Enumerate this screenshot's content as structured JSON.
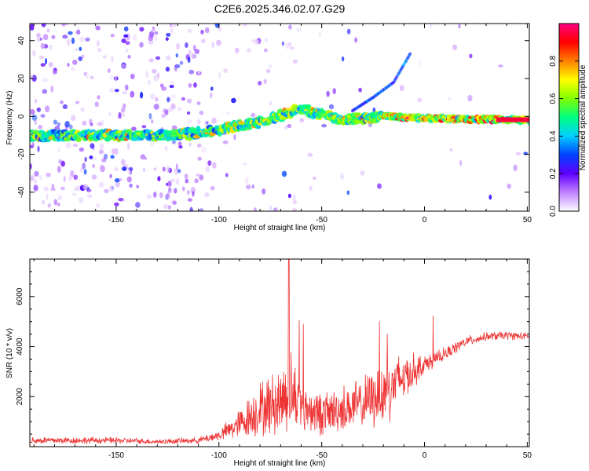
{
  "title": "C2E6.2025.346.02.07.G29",
  "chart_data": [
    {
      "type": "heatmap",
      "title": "C2E6.2025.346.02.07.G29",
      "xlabel": "Height of straight line (km)",
      "ylabel": "Frequency (Hz)",
      "xlim": [
        -192,
        51
      ],
      "ylim": [
        -50,
        49
      ],
      "xticks": [
        -150,
        -100,
        -50,
        0,
        50
      ],
      "yticks": [
        -40,
        -20,
        0,
        20,
        40
      ],
      "colorbar": {
        "label": "Normalized spectral amplitude",
        "range": [
          0,
          1
        ],
        "ticks": [
          0.0,
          0.2,
          0.4,
          0.6,
          0.8
        ],
        "colors": [
          "#ffffff",
          "#c080ff",
          "#6000ff",
          "#0040ff",
          "#00d0ff",
          "#00ff80",
          "#80ff00",
          "#ffff00",
          "#ff8000",
          "#ff0000",
          "#ff0080"
        ]
      },
      "ridge": [
        {
          "x": -192,
          "y": -10
        },
        {
          "x": -150,
          "y": -10
        },
        {
          "x": -120,
          "y": -10
        },
        {
          "x": -100,
          "y": -7
        },
        {
          "x": -80,
          "y": -3
        },
        {
          "x": -60,
          "y": 4
        },
        {
          "x": -50,
          "y": 1
        },
        {
          "x": -40,
          "y": -2
        },
        {
          "x": -30,
          "y": -1
        },
        {
          "x": -20,
          "y": 0
        },
        {
          "x": 0,
          "y": -1
        },
        {
          "x": 30,
          "y": -1.5
        },
        {
          "x": 51,
          "y": -2
        }
      ],
      "secondary_track": [
        {
          "x": -35,
          "y": 3
        },
        {
          "x": -25,
          "y": 10
        },
        {
          "x": -15,
          "y": 18
        },
        {
          "x": -7,
          "y": 33
        }
      ]
    },
    {
      "type": "line",
      "xlabel": "Height of straight line (km)",
      "ylabel": "SNR (10 * v/v)",
      "xlim": [
        -192,
        51
      ],
      "ylim": [
        0,
        7500
      ],
      "xticks": [
        -150,
        -100,
        -50,
        0,
        50
      ],
      "yticks": [
        2000,
        4000,
        6000
      ],
      "color": "#ee3333",
      "envelope": [
        {
          "x": -192,
          "mean": 250,
          "amp": 180
        },
        {
          "x": -150,
          "mean": 250,
          "amp": 150
        },
        {
          "x": -130,
          "mean": 200,
          "amp": 120
        },
        {
          "x": -110,
          "mean": 250,
          "amp": 150
        },
        {
          "x": -100,
          "mean": 450,
          "amp": 250
        },
        {
          "x": -90,
          "mean": 900,
          "amp": 700
        },
        {
          "x": -80,
          "mean": 1500,
          "amp": 1300
        },
        {
          "x": -70,
          "mean": 1800,
          "amp": 1600
        },
        {
          "x": -66,
          "mean": 2300,
          "amp": 2100
        },
        {
          "x": -60,
          "mean": 1600,
          "amp": 1200
        },
        {
          "x": -50,
          "mean": 1300,
          "amp": 1000
        },
        {
          "x": -40,
          "mean": 1500,
          "amp": 1100
        },
        {
          "x": -30,
          "mean": 1700,
          "amp": 1200
        },
        {
          "x": -20,
          "mean": 2200,
          "amp": 1600
        },
        {
          "x": -10,
          "mean": 2800,
          "amp": 1200
        },
        {
          "x": 0,
          "mean": 3300,
          "amp": 400
        },
        {
          "x": 10,
          "mean": 3700,
          "amp": 300
        },
        {
          "x": 20,
          "mean": 4200,
          "amp": 250
        },
        {
          "x": 30,
          "mean": 4400,
          "amp": 200
        },
        {
          "x": 40,
          "mean": 4450,
          "amp": 200
        },
        {
          "x": 51,
          "mean": 4400,
          "amp": 180
        }
      ],
      "peak": {
        "x": -66,
        "y": 7500
      }
    }
  ]
}
